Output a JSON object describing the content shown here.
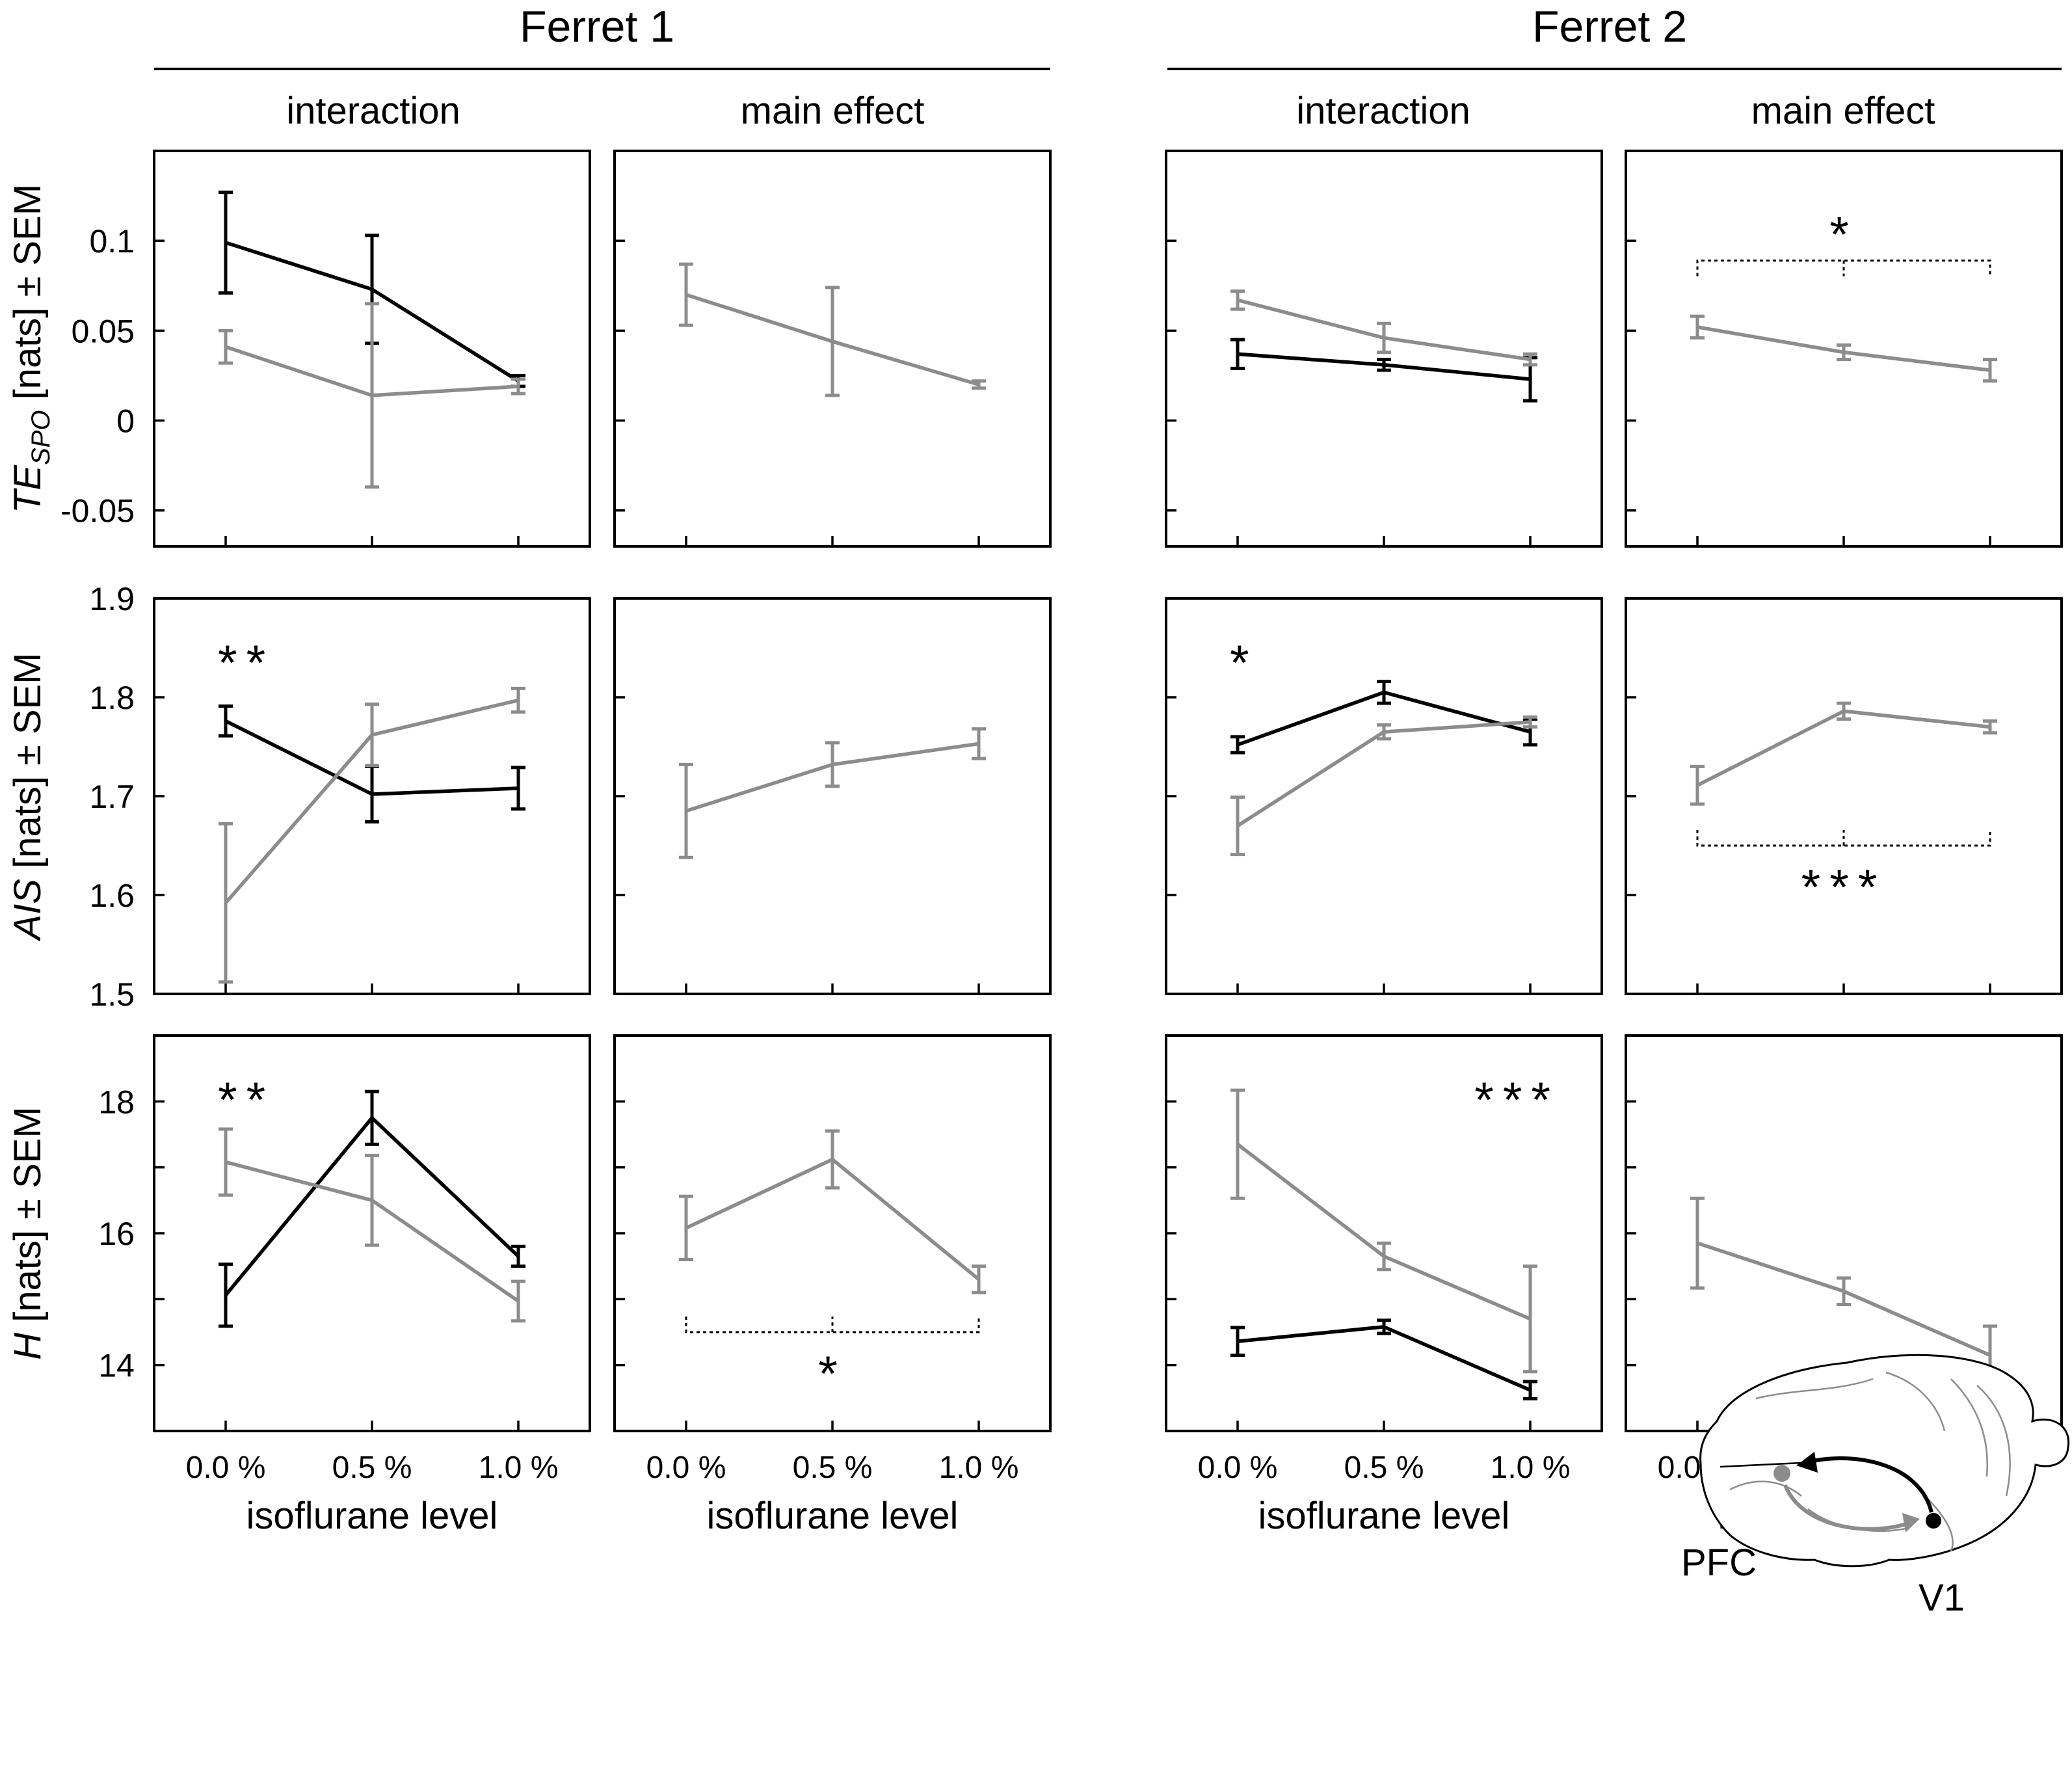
{
  "colors": {
    "v1_to_pfc": "#000000",
    "pfc_to_v1": "#8c8c8c",
    "axis": "#000000"
  },
  "groups": [
    {
      "title": "Ferret 1",
      "columns": [
        "interaction",
        "main effect"
      ]
    },
    {
      "title": "Ferret 2",
      "columns": [
        "interaction",
        "main effect"
      ]
    }
  ],
  "x_axis": {
    "label": "isoflurane level",
    "ticks": [
      "0.0 %",
      "0.5 %",
      "1.0 %"
    ]
  },
  "rows": [
    {
      "ylabel": "TE_SPO [nats] ± SEM",
      "ylabel_main": "TE",
      "ylabel_sub": "SPO",
      "ylabel_rest": " [nats] ± SEM",
      "ylim": [
        -0.07,
        0.15
      ],
      "yticks": [
        -0.05,
        0,
        0.05,
        0.1
      ],
      "ytick_labels": [
        "-0.05",
        "0",
        "0.05",
        "0.1"
      ]
    },
    {
      "ylabel": "AIS [nats] ± SEM",
      "ylabel_main": "AIS",
      "ylabel_sub": "",
      "ylabel_rest": " [nats] ± SEM",
      "ylim": [
        1.5,
        1.9
      ],
      "yticks": [
        1.5,
        1.6,
        1.7,
        1.8,
        1.9
      ],
      "ytick_labels": [
        "1.5",
        "1.6",
        "1.7",
        "1.8",
        "1.9"
      ]
    },
    {
      "ylabel": "H [nats] ± SEM",
      "ylabel_main": "H",
      "ylabel_sub": "",
      "ylabel_rest": " [nats] ± SEM",
      "ylim": [
        13,
        19
      ],
      "yticks": [
        14,
        15,
        16,
        17,
        18
      ],
      "ytick_labels": [
        "14",
        "",
        "16",
        "",
        "18"
      ]
    }
  ],
  "chart_data": [
    {
      "type": "line",
      "row": 0,
      "col": 0,
      "title": "Ferret 1 interaction",
      "xlabel": "isoflurane level",
      "ylabel": "TE_SPO [nats] ± SEM",
      "categories": [
        "0.0 %",
        "0.5 %",
        "1.0 %"
      ],
      "ylim": [
        -0.07,
        0.15
      ],
      "series": [
        {
          "name": "V1 to PFC",
          "color": "#000000",
          "values": [
            0.099,
            0.073,
            0.022
          ],
          "errors": [
            0.028,
            0.03,
            0.003
          ]
        },
        {
          "name": "PFC to V1",
          "color": "#8c8c8c",
          "values": [
            0.041,
            0.014,
            0.019
          ],
          "errors": [
            0.009,
            0.051,
            0.004
          ]
        }
      ],
      "annotations": []
    },
    {
      "type": "line",
      "row": 0,
      "col": 1,
      "title": "Ferret 1 main effect",
      "xlabel": "isoflurane level",
      "ylabel": "TE_SPO [nats] ± SEM",
      "categories": [
        "0.0 %",
        "0.5 %",
        "1.0 %"
      ],
      "ylim": [
        -0.07,
        0.15
      ],
      "series": [
        {
          "name": "main effect",
          "color": "#8c8c8c",
          "values": [
            0.07,
            0.044,
            0.02
          ],
          "errors": [
            0.017,
            0.03,
            0.002
          ]
        }
      ],
      "annotations": []
    },
    {
      "type": "line",
      "row": 0,
      "col": 2,
      "title": "Ferret 2 interaction",
      "xlabel": "isoflurane level",
      "ylabel": "TE_SPO [nats] ± SEM",
      "categories": [
        "0.0 %",
        "0.5 %",
        "1.0 %"
      ],
      "ylim": [
        -0.07,
        0.15
      ],
      "series": [
        {
          "name": "V1 to PFC",
          "color": "#000000",
          "values": [
            0.037,
            0.031,
            0.023
          ],
          "errors": [
            0.008,
            0.003,
            0.012
          ]
        },
        {
          "name": "PFC to V1",
          "color": "#8c8c8c",
          "values": [
            0.067,
            0.046,
            0.034
          ],
          "errors": [
            0.005,
            0.008,
            0.003
          ]
        }
      ],
      "annotations": []
    },
    {
      "type": "line",
      "row": 0,
      "col": 3,
      "title": "Ferret 2 main effect",
      "xlabel": "isoflurane level",
      "ylabel": "TE_SPO [nats] ± SEM",
      "categories": [
        "0.0 %",
        "0.5 %",
        "1.0 %"
      ],
      "ylim": [
        -0.07,
        0.15
      ],
      "series": [
        {
          "name": "main effect",
          "color": "#8c8c8c",
          "values": [
            0.052,
            0.038,
            0.028
          ],
          "errors": [
            0.006,
            0.004,
            0.006
          ]
        }
      ],
      "annotations": [
        {
          "text": "*",
          "bracket_y": 0.089,
          "position": "above"
        }
      ]
    },
    {
      "type": "line",
      "row": 1,
      "col": 0,
      "title": "Ferret 1 interaction",
      "xlabel": "isoflurane level",
      "ylabel": "AIS [nats] ± SEM",
      "categories": [
        "0.0 %",
        "0.5 %",
        "1.0 %"
      ],
      "ylim": [
        1.5,
        1.9
      ],
      "series": [
        {
          "name": "V1 to PFC",
          "color": "#000000",
          "values": [
            1.776,
            1.702,
            1.708
          ],
          "errors": [
            0.015,
            0.028,
            0.021
          ]
        },
        {
          "name": "PFC to V1",
          "color": "#8c8c8c",
          "values": [
            1.592,
            1.762,
            1.797
          ],
          "errors": [
            0.08,
            0.031,
            0.012
          ]
        }
      ],
      "annotations": [
        {
          "text": "**",
          "position": "top-left"
        }
      ]
    },
    {
      "type": "line",
      "row": 1,
      "col": 1,
      "title": "Ferret 1 main effect",
      "xlabel": "isoflurane level",
      "ylabel": "AIS [nats] ± SEM",
      "categories": [
        "0.0 %",
        "0.5 %",
        "1.0 %"
      ],
      "ylim": [
        1.5,
        1.9
      ],
      "series": [
        {
          "name": "main effect",
          "color": "#8c8c8c",
          "values": [
            1.685,
            1.732,
            1.753
          ],
          "errors": [
            0.047,
            0.022,
            0.015
          ]
        }
      ],
      "annotations": []
    },
    {
      "type": "line",
      "row": 1,
      "col": 2,
      "title": "Ferret 2 interaction",
      "xlabel": "isoflurane level",
      "ylabel": "AIS [nats] ± SEM",
      "categories": [
        "0.0 %",
        "0.5 %",
        "1.0 %"
      ],
      "ylim": [
        1.5,
        1.9
      ],
      "series": [
        {
          "name": "V1 to PFC",
          "color": "#000000",
          "values": [
            1.752,
            1.805,
            1.765
          ],
          "errors": [
            0.008,
            0.011,
            0.013
          ]
        },
        {
          "name": "PFC to V1",
          "color": "#8c8c8c",
          "values": [
            1.67,
            1.765,
            1.775
          ],
          "errors": [
            0.029,
            0.007,
            0.005
          ]
        }
      ],
      "annotations": [
        {
          "text": "*",
          "position": "top-left"
        }
      ]
    },
    {
      "type": "line",
      "row": 1,
      "col": 3,
      "title": "Ferret 2 main effect",
      "xlabel": "isoflurane level",
      "ylabel": "AIS [nats] ± SEM",
      "categories": [
        "0.0 %",
        "0.5 %",
        "1.0 %"
      ],
      "ylim": [
        1.5,
        1.9
      ],
      "series": [
        {
          "name": "main effect",
          "color": "#8c8c8c",
          "values": [
            1.711,
            1.786,
            1.77
          ],
          "errors": [
            0.019,
            0.008,
            0.006
          ]
        }
      ],
      "annotations": [
        {
          "text": "***",
          "bracket_y": 1.65,
          "position": "below"
        }
      ]
    },
    {
      "type": "line",
      "row": 2,
      "col": 0,
      "title": "Ferret 1 interaction",
      "xlabel": "isoflurane level",
      "ylabel": "H [nats] ± SEM",
      "categories": [
        "0.0 %",
        "0.5 %",
        "1.0 %"
      ],
      "ylim": [
        13,
        19
      ],
      "series": [
        {
          "name": "V1 to PFC",
          "color": "#000000",
          "values": [
            15.06,
            17.75,
            15.65
          ],
          "errors": [
            0.47,
            0.4,
            0.15
          ]
        },
        {
          "name": "PFC to V1",
          "color": "#8c8c8c",
          "values": [
            17.08,
            16.5,
            14.97
          ],
          "errors": [
            0.5,
            0.68,
            0.3
          ]
        }
      ],
      "annotations": [
        {
          "text": "**",
          "position": "top-left"
        }
      ]
    },
    {
      "type": "line",
      "row": 2,
      "col": 1,
      "title": "Ferret 1 main effect",
      "xlabel": "isoflurane level",
      "ylabel": "H [nats] ± SEM",
      "categories": [
        "0.0 %",
        "0.5 %",
        "1.0 %"
      ],
      "ylim": [
        13,
        19
      ],
      "series": [
        {
          "name": "main effect",
          "color": "#8c8c8c",
          "values": [
            16.08,
            17.12,
            15.3
          ],
          "errors": [
            0.48,
            0.43,
            0.2
          ]
        }
      ],
      "annotations": [
        {
          "text": "*",
          "bracket_y": 14.5,
          "position": "below"
        }
      ]
    },
    {
      "type": "line",
      "row": 2,
      "col": 2,
      "title": "Ferret 2 interaction",
      "xlabel": "isoflurane level",
      "ylabel": "H [nats] ± SEM",
      "categories": [
        "0.0 %",
        "0.5 %",
        "1.0 %"
      ],
      "ylim": [
        13,
        19
      ],
      "series": [
        {
          "name": "V1 to PFC",
          "color": "#000000",
          "values": [
            14.36,
            14.58,
            13.62
          ],
          "errors": [
            0.21,
            0.1,
            0.13
          ]
        },
        {
          "name": "PFC to V1",
          "color": "#8c8c8c",
          "values": [
            17.35,
            15.65,
            14.7
          ],
          "errors": [
            0.82,
            0.2,
            0.8
          ]
        }
      ],
      "annotations": [
        {
          "text": "***",
          "position": "top-right"
        }
      ]
    },
    {
      "type": "line",
      "row": 2,
      "col": 3,
      "title": "Ferret 2 main effect",
      "xlabel": "isoflurane level",
      "ylabel": "H [nats] ± SEM",
      "categories": [
        "0.0 %",
        "0.5 %",
        "1.0 %"
      ],
      "ylim": [
        13,
        19
      ],
      "series": [
        {
          "name": "main effect",
          "color": "#8c8c8c",
          "values": [
            15.85,
            15.12,
            14.15
          ],
          "errors": [
            0.68,
            0.2,
            0.44
          ]
        }
      ],
      "annotations": []
    }
  ],
  "brain_diagram": {
    "pfc_label": "PFC",
    "v1_label": "V1"
  }
}
